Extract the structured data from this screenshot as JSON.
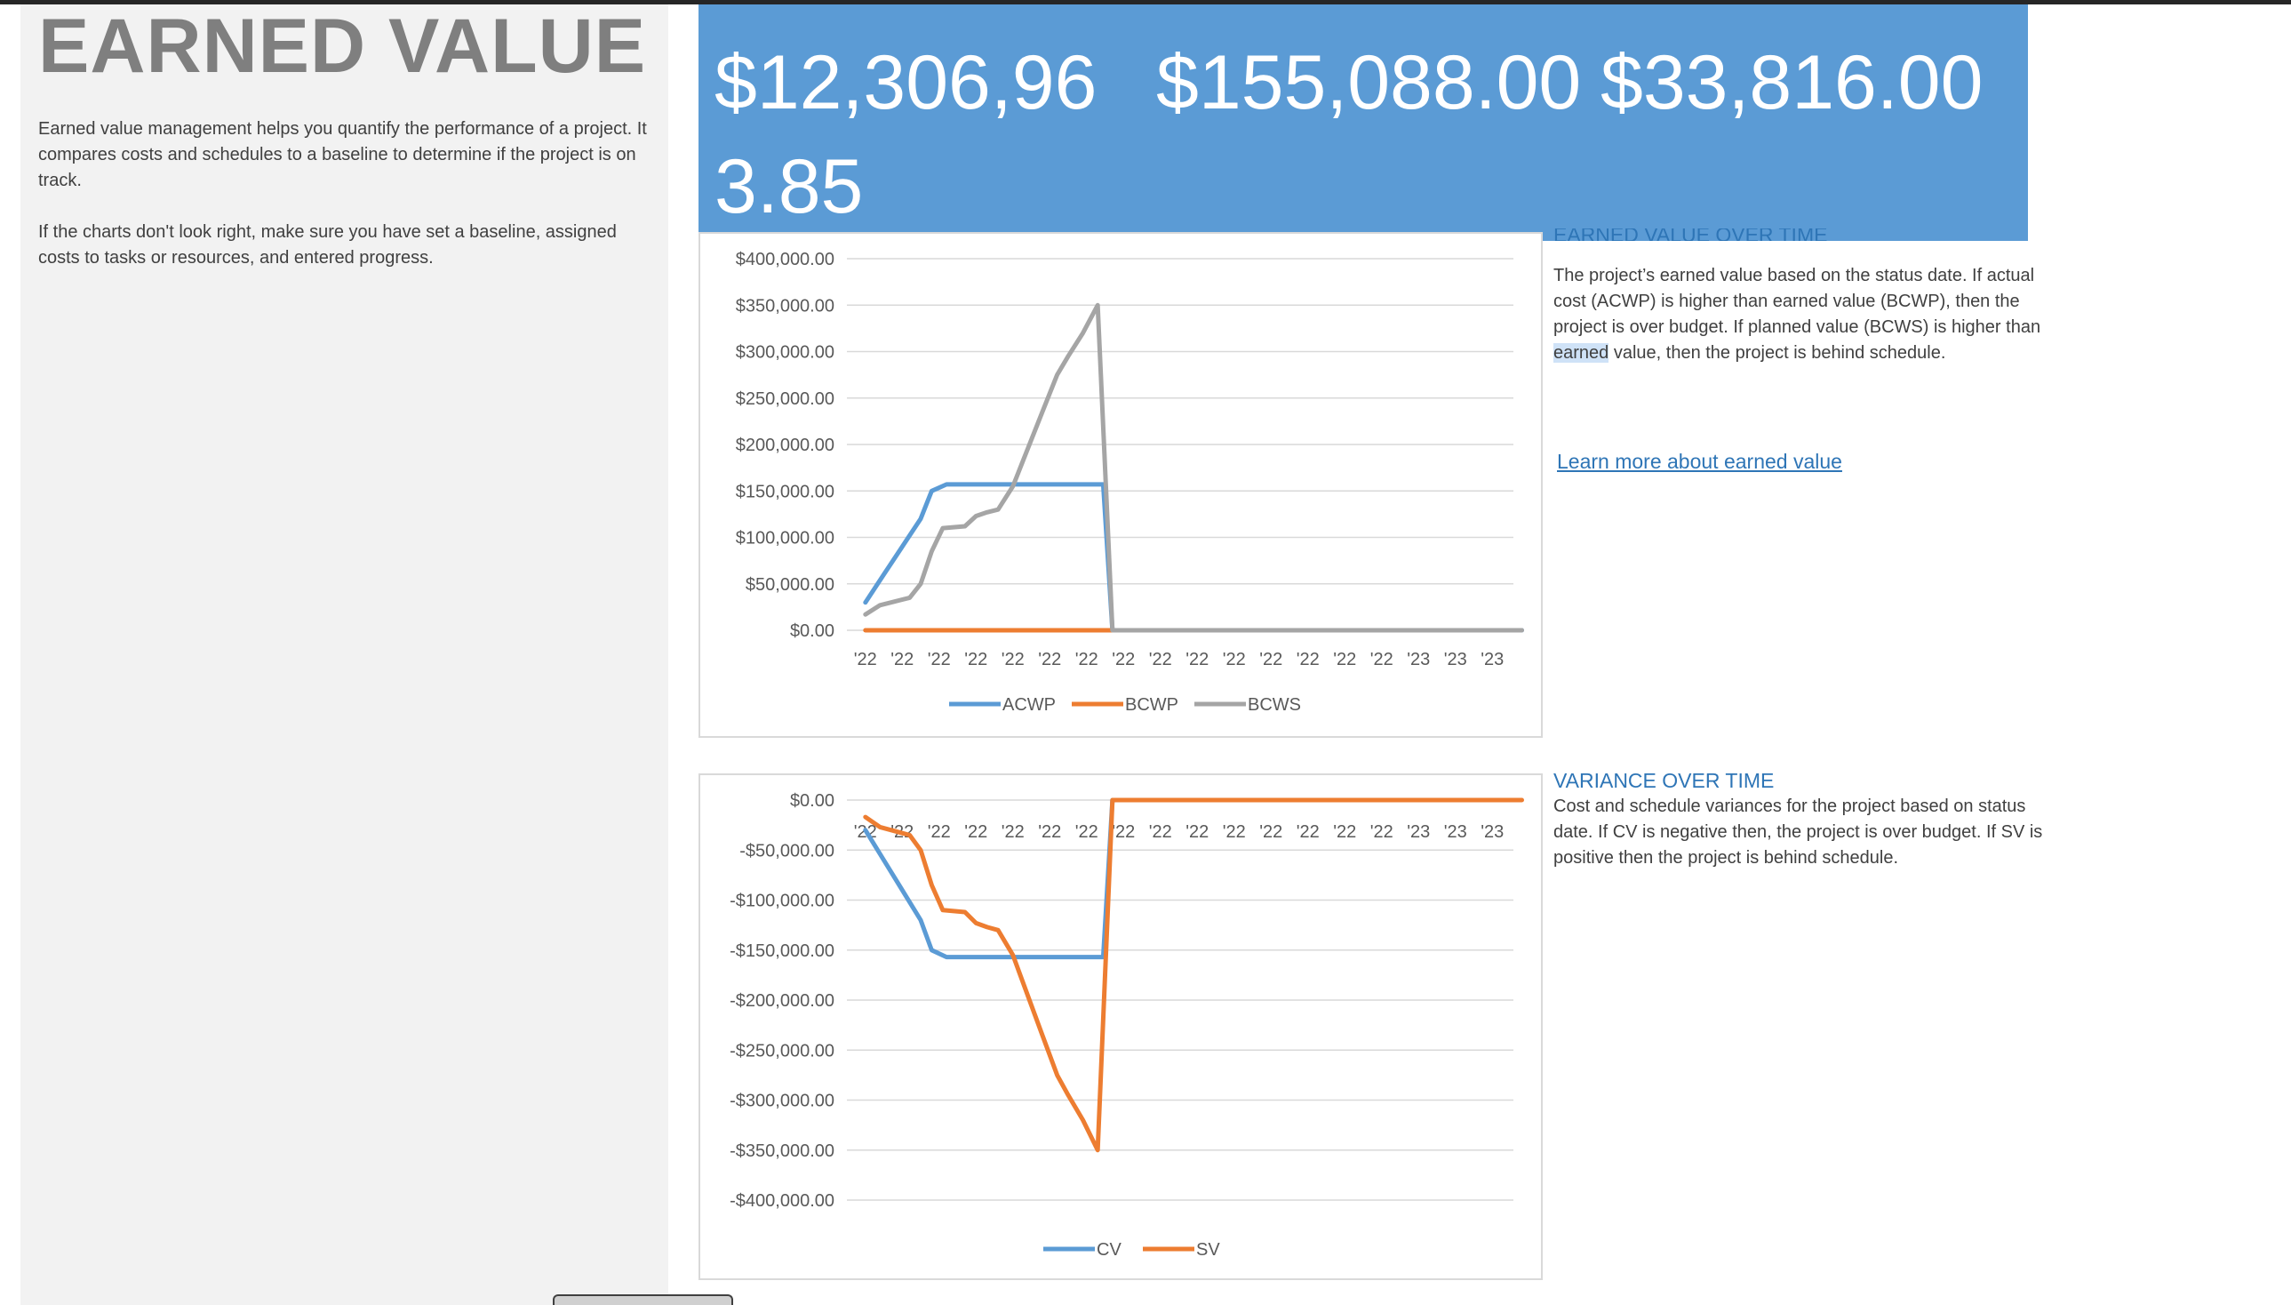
{
  "sheet": {
    "title": "EARNED VALUE",
    "intro_p1": "Earned value management helps you quantify the performance of a project. It compares costs and schedules to a baseline to determine if the project is on track.",
    "intro_p2": "If the charts don't look right, make sure you have set a baseline, assigned costs to tasks or resources, and entered progress."
  },
  "kpis": [
    "$12,306,963.85",
    "$155,088.00",
    "$33,816.00"
  ],
  "earned_value_section": {
    "title": "EARNED VALUE OVER TIME",
    "body_before": "The project’s earned value based on the status date.  If actual cost (ACWP) is higher than earned value (BCWP), then the project is over budget.  If planned value (BCWS) is higher than ",
    "body_highlight": "earned",
    "body_after": " value, then the project is behind schedule.",
    "link": "Learn more about earned value"
  },
  "variance_section": {
    "title": "VARIANCE OVER TIME",
    "body": "Cost and schedule variances for the project based on status date.  If CV is negative then, the project is over budget.  If SV is positive then the project is behind schedule."
  },
  "chart_data": [
    {
      "type": "line",
      "categories": [
        "'22",
        "'22",
        "'22",
        "'22",
        "'22",
        "'22",
        "'22",
        "'22",
        "'22",
        "'22",
        "'22",
        "'22",
        "'22",
        "'22",
        "'22",
        "'23",
        "'23",
        "'23"
      ],
      "ylim": [
        0,
        400000
      ],
      "yticks": [
        "$0.00",
        "$50,000.00",
        "$100,000.00",
        "$150,000.00",
        "$200,000.00",
        "$250,000.00",
        "$300,000.00",
        "$350,000.00",
        "$400,000.00"
      ],
      "legend": "bottom",
      "grid": true,
      "series": [
        {
          "name": "ACWP",
          "color": "#5b9bd5",
          "points": [
            [
              0,
              30000
            ],
            [
              0.5,
              60000
            ],
            [
              1,
              90000
            ],
            [
              1.5,
              120000
            ],
            [
              1.8,
              150000
            ],
            [
              2.2,
              157000
            ],
            [
              3,
              157000
            ],
            [
              4,
              157000
            ],
            [
              5,
              157000
            ],
            [
              6,
              157000
            ],
            [
              6.45,
              157000
            ],
            [
              6.7,
              0
            ],
            [
              17.8,
              0
            ]
          ]
        },
        {
          "name": "BCWP",
          "color": "#ed7d31",
          "points": [
            [
              0,
              0
            ],
            [
              6.7,
              0
            ]
          ]
        },
        {
          "name": "BCWS",
          "color": "#a5a5a5",
          "points": [
            [
              0,
              17000
            ],
            [
              0.4,
              27000
            ],
            [
              1.2,
              35000
            ],
            [
              1.5,
              50000
            ],
            [
              1.8,
              85000
            ],
            [
              2.1,
              110000
            ],
            [
              2.7,
              112000
            ],
            [
              3,
              123000
            ],
            [
              3.3,
              127000
            ],
            [
              3.6,
              130000
            ],
            [
              4,
              155000
            ],
            [
              4.3,
              185000
            ],
            [
              4.8,
              235000
            ],
            [
              5.2,
              275000
            ],
            [
              5.5,
              295000
            ],
            [
              5.9,
              320000
            ],
            [
              6.3,
              350000
            ],
            [
              6.7,
              0
            ],
            [
              17.8,
              0
            ]
          ]
        }
      ]
    },
    {
      "type": "line",
      "categories": [
        "'22",
        "'22",
        "'22",
        "'22",
        "'22",
        "'22",
        "'22",
        "'22",
        "'22",
        "'22",
        "'22",
        "'22",
        "'22",
        "'22",
        "'22",
        "'23",
        "'23",
        "'23"
      ],
      "ylim": [
        -400000,
        0
      ],
      "yticks": [
        "$0.00",
        "-$50,000.00",
        "-$100,000.00",
        "-$150,000.00",
        "-$200,000.00",
        "-$250,000.00",
        "-$300,000.00",
        "-$350,000.00",
        "-$400,000.00"
      ],
      "legend": "bottom",
      "grid": true,
      "series": [
        {
          "name": "CV",
          "color": "#5b9bd5",
          "points": [
            [
              0,
              -30000
            ],
            [
              0.5,
              -60000
            ],
            [
              1,
              -90000
            ],
            [
              1.5,
              -120000
            ],
            [
              1.8,
              -150000
            ],
            [
              2.2,
              -157000
            ],
            [
              3,
              -157000
            ],
            [
              4,
              -157000
            ],
            [
              5,
              -157000
            ],
            [
              6.2,
              -157000
            ],
            [
              6.45,
              -157000
            ],
            [
              6.7,
              0
            ]
          ]
        },
        {
          "name": "SV",
          "color": "#ed7d31",
          "points": [
            [
              0,
              -17000
            ],
            [
              0.4,
              -27000
            ],
            [
              1.2,
              -35000
            ],
            [
              1.5,
              -50000
            ],
            [
              1.8,
              -85000
            ],
            [
              2.1,
              -110000
            ],
            [
              2.7,
              -112000
            ],
            [
              3,
              -123000
            ],
            [
              3.3,
              -127000
            ],
            [
              3.6,
              -130000
            ],
            [
              4,
              -155000
            ],
            [
              4.3,
              -185000
            ],
            [
              4.8,
              -235000
            ],
            [
              5.2,
              -275000
            ],
            [
              5.5,
              -295000
            ],
            [
              5.9,
              -320000
            ],
            [
              6.3,
              -350000
            ],
            [
              6.7,
              0
            ],
            [
              17.8,
              0
            ]
          ]
        }
      ]
    }
  ]
}
